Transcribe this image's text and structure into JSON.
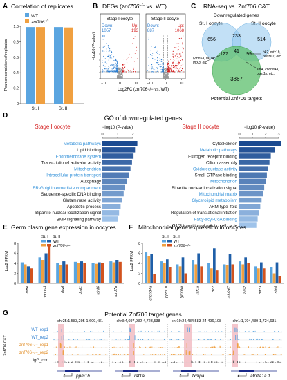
{
  "panel_letters": [
    "A",
    "B",
    "C",
    "D",
    "E",
    "F",
    "G"
  ],
  "A": {
    "title": "Correlation of replicates",
    "legend": [
      {
        "name": "WT",
        "color": "#5aa5e0"
      },
      {
        "name": "znf706",
        "sup": "−/−",
        "color": "#f0a040"
      }
    ],
    "ylabel": "Pearson correlation of replicates",
    "yticks": [
      "0",
      "0.2",
      "0.4",
      "0.6",
      "0.8",
      "1.0"
    ],
    "xticks": [
      "St. I",
      "St. II"
    ]
  },
  "B": {
    "title_pre": "DEGs (",
    "title_gene": "znf706",
    "title_sup": "−/−",
    "title_post": " vs. WT)",
    "ylabel": "−log10 (P-value)",
    "xlabel": "Log2FC (znf706−/− vs. WT)",
    "sub1": {
      "title": "Stage I oocyte",
      "down": "Down: 1057",
      "up": "Up: 193"
    },
    "sub2": {
      "title": "Stage II oocyte",
      "down": "Down: 887",
      "up": "Up: 1068"
    },
    "xticks": [
      "−10",
      "0",
      "10"
    ],
    "yticks": [
      "0",
      "2",
      "4",
      "6",
      "8",
      "10"
    ]
  },
  "C": {
    "title": "RNA-seq vs. Znf706 C&T",
    "subtitle": "Downregulated genes",
    "left_label": "St. I oocyte",
    "right_label": "St. II oocyte",
    "bottom_label": "Potential Znf706 targets",
    "numbers": {
      "a": "656",
      "b": "233",
      "c": "514",
      "d": "127",
      "e": "41",
      "f": "99",
      "g": "3867"
    },
    "gene_left": "lymn5a, raf1a, mtx3, etc.",
    "gene_right": "hk2, mtx1b, ndufaf7, etc.",
    "gene_bottom": "sirt4, chchd4a, ppm1h, etc."
  },
  "D": {
    "title": "GO of downregulated genes",
    "axis_label": "−log10 (P-value)",
    "left": {
      "title": "Stage I oocyte",
      "ticks": [
        "0",
        "1",
        "2"
      ],
      "terms": [
        {
          "label": "Metabolic pathways",
          "value": 2.3,
          "blue": true
        },
        {
          "label": "Lipid binding",
          "value": 2.15,
          "blue": false
        },
        {
          "label": "Endomembrane system",
          "value": 2.05,
          "blue": true
        },
        {
          "label": "Transcriptional activator activity",
          "value": 1.95,
          "blue": false
        },
        {
          "label": "Mitochondrion",
          "value": 1.85,
          "blue": true
        },
        {
          "label": "Intracellular protein transport",
          "value": 1.75,
          "blue": true
        },
        {
          "label": "Autophagy",
          "value": 1.6,
          "blue": false
        },
        {
          "label": "ER-Golgi intermediate compartment",
          "value": 1.5,
          "blue": true
        },
        {
          "label": "Sequence-specific DNA binding",
          "value": 1.4,
          "blue": false
        },
        {
          "label": "Glutaminase activity",
          "value": 1.3,
          "blue": false
        },
        {
          "label": "Apoptotic process",
          "value": 1.2,
          "blue": false
        },
        {
          "label": "Bipartite nuclear localization signal",
          "value": 1.1,
          "blue": false
        },
        {
          "label": "BMP signaling pathway",
          "value": 1.0,
          "blue": false
        }
      ]
    },
    "right": {
      "title": "Stage II oocyte",
      "ticks": [
        "0",
        "1",
        "2",
        "3"
      ],
      "terms": [
        {
          "label": "Cytoskeleton",
          "value": 3.2,
          "blue": false
        },
        {
          "label": "Metabolic pathways",
          "value": 2.7,
          "blue": true
        },
        {
          "label": "Estrogen receptor binding",
          "value": 2.4,
          "blue": false
        },
        {
          "label": "Cilium assembly",
          "value": 2.3,
          "blue": false
        },
        {
          "label": "Oxidoreductase activity",
          "value": 2.2,
          "blue": true
        },
        {
          "label": "Small GTPase binding",
          "value": 2.1,
          "blue": false
        },
        {
          "label": "Mitochondrion",
          "value": 2.0,
          "blue": true
        },
        {
          "label": "Bipartite nuclear localization signal",
          "value": 1.9,
          "blue": false
        },
        {
          "label": "Mitochondrial matrix",
          "value": 1.8,
          "blue": true
        },
        {
          "label": "Glycerolipid metabolism",
          "value": 1.7,
          "blue": true
        },
        {
          "label": "ARM-type_fold",
          "value": 1.6,
          "blue": false
        },
        {
          "label": "Regulation of translational initiation",
          "value": 1.5,
          "blue": false
        },
        {
          "label": "Fatty-acyl-CoA binding",
          "value": 1.4,
          "blue": true
        },
        {
          "label": "G1/S transition of mitotic cell cycle",
          "value": 1.3,
          "blue": false
        }
      ]
    }
  },
  "E": {
    "title": "Germ plasm gene expression in oocytes",
    "ylabel": "Log2 FPKM",
    "yticks": [
      "0",
      "2",
      "4",
      "6",
      "8"
    ],
    "legend_st": [
      "St. I",
      "St. II"
    ],
    "legend_geno": [
      "WT",
      "znf706−/−"
    ],
    "genes": [
      "dzf4",
      "nanos3",
      "dazl",
      "dnd1",
      "tdrd6",
      "tdrd7a"
    ]
  },
  "F": {
    "title": "Mitochondrial gene expression in oocytes",
    "ylabel": "Log2 FPKM",
    "yticks": [
      "0",
      "2",
      "4",
      "6",
      "8"
    ],
    "legend_st": [
      "St. I",
      "St. II"
    ],
    "legend_geno": [
      "WT",
      "znf706−/−"
    ],
    "genes": [
      "chchd4a",
      "ppm1h",
      "lymn5a",
      "raf1a",
      "hk2",
      "ndufaf7",
      "fars2",
      "mtx3",
      "sirt4"
    ]
  },
  "G": {
    "title": "Potential Znf706 target genes",
    "side_label": "Znf706 C&T",
    "tracks": [
      "WT_rep1",
      "WT_rep2",
      "znf706−/−_rep1",
      "znf706−/−_rep2",
      "IgG_con"
    ],
    "loci": [
      {
        "coord": "chr25:1,583,295-1,609,481",
        "gene": "ppm1h"
      },
      {
        "coord": "chr3:4,697,932-4,723,538",
        "gene": "raf1a"
      },
      {
        "coord": "chr19:24,484,583-24,496,198",
        "gene": "txnipa"
      },
      {
        "coord": "chr1:1,704,439-1,724,631",
        "gene": "atp1a1a.1"
      }
    ]
  },
  "colors": {
    "wt": "#5aa5e0",
    "mut": "#f0a040",
    "wt_dark": "#1f5fa8",
    "mut_dark": "#d2531e",
    "red": "#d42020",
    "blue_label": "#2f8fd8",
    "venn_blue": "#8fc7ef",
    "venn_green": "#5cbf6c",
    "track_red": "#e05050",
    "track_grey": "#666666",
    "highlight": "#f4c6cc",
    "bar_dark": "#1b4a90",
    "bar_light": "#9fc3ea"
  }
}
